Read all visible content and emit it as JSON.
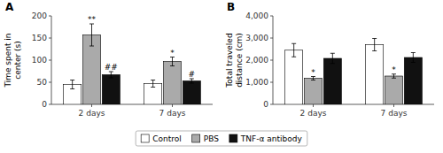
{
  "chart_data": [
    {
      "type": "bar",
      "title": "A",
      "y_label": "Time spent in\ncenter (s)",
      "categories": [
        "2 days",
        "7 days"
      ],
      "series": [
        {
          "name": "Control",
          "color": "#ffffff",
          "values": [
            45,
            47
          ],
          "errors": [
            10,
            8
          ]
        },
        {
          "name": "PBS",
          "color": "#aaaaaa",
          "values": [
            157,
            97
          ],
          "errors": [
            25,
            10
          ],
          "annotations": [
            "**",
            "*"
          ]
        },
        {
          "name": "TNF-α antibody",
          "color": "#111111",
          "values": [
            67,
            53
          ],
          "errors": [
            7,
            5
          ],
          "annotations": [
            "##",
            "#"
          ]
        }
      ],
      "ylim": [
        0,
        200
      ],
      "yticks": [
        0,
        50,
        100,
        150,
        200
      ],
      "grid": false,
      "legend": "bottom"
    },
    {
      "type": "bar",
      "title": "B",
      "y_label": "Total traveled\ndistance (cm)",
      "categories": [
        "2 days",
        "7 days"
      ],
      "series": [
        {
          "name": "Control",
          "color": "#ffffff",
          "values": [
            2450,
            2700
          ],
          "errors": [
            300,
            280
          ]
        },
        {
          "name": "PBS",
          "color": "#aaaaaa",
          "values": [
            1180,
            1280
          ],
          "errors": [
            80,
            90
          ],
          "annotations": [
            "*",
            "*"
          ]
        },
        {
          "name": "TNF-α antibody",
          "color": "#111111",
          "values": [
            2080,
            2120
          ],
          "errors": [
            230,
            220
          ]
        }
      ],
      "ylim": [
        0,
        4000
      ],
      "yticks": [
        0,
        {
          "value": 1000,
          "label": "1,000"
        },
        {
          "value": 2000,
          "label": "2,000"
        },
        {
          "value": 3000,
          "label": "3,000"
        },
        {
          "value": 4000,
          "label": "4,000"
        }
      ],
      "grid": false,
      "legend": "bottom"
    }
  ]
}
